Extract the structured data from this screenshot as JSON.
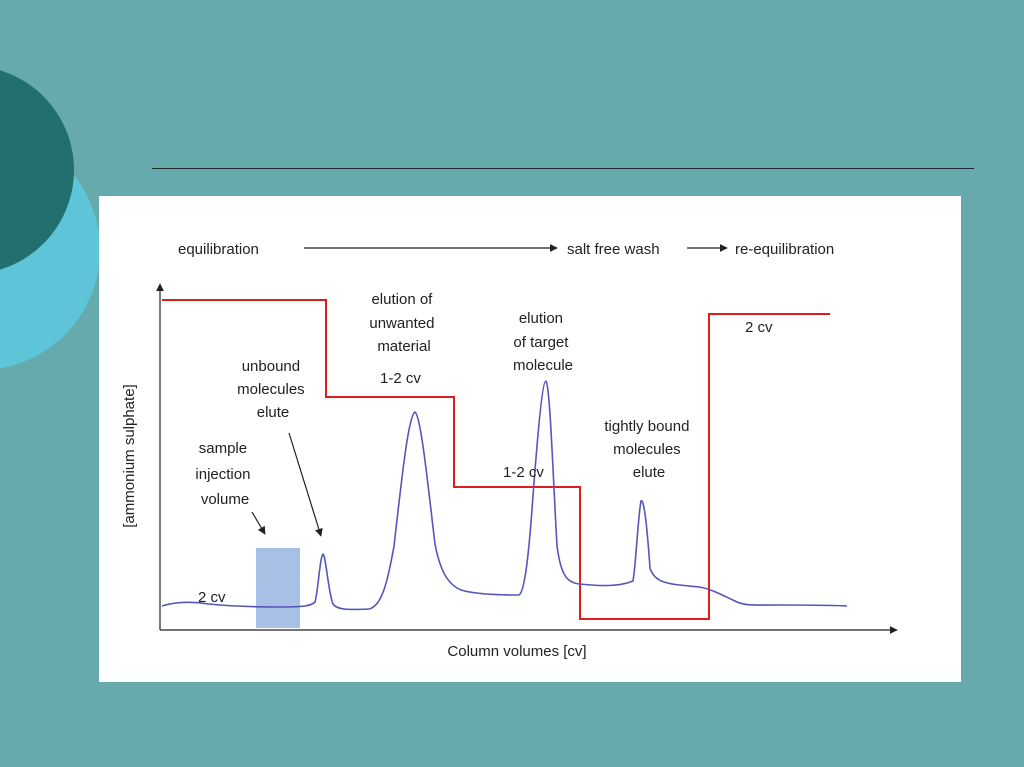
{
  "colors": {
    "slide_background": "#66aaae",
    "circle_dark": "#21706f",
    "circle_light": "#5ec4d8",
    "salt_line": "#e01d1d",
    "chromatogram_line": "#5656b8",
    "sample_box": "#a8bfe6"
  },
  "phases": {
    "equilibration": "equilibration",
    "salt_free_wash": "salt free wash",
    "re_equilibration": "re-equilibration"
  },
  "axes": {
    "y_label": "[ammonium sulphate]",
    "x_label": "Column volumes [cv]"
  },
  "annotations": {
    "sample_injection": [
      "sample",
      "injection",
      "volume"
    ],
    "unbound": [
      "unbound",
      "molecules",
      "elute"
    ],
    "unwanted": [
      "elution of",
      "unwanted",
      "material"
    ],
    "target": [
      "elution",
      "of target",
      "molecule"
    ],
    "tightly_bound": [
      "tightly bound",
      "molecules",
      "elute"
    ],
    "cv_start": "2 cv",
    "cv_unwanted": "1-2 cv",
    "cv_target": "1-2 cv",
    "cv_end": "2 cv"
  },
  "icons": {
    "arrow_to_wash": "long-right-arrow-icon",
    "arrow_to_reequil": "short-right-arrow-icon",
    "pointer_sample": "pointer-arrow-icon",
    "pointer_unbound": "pointer-arrow-icon"
  }
}
